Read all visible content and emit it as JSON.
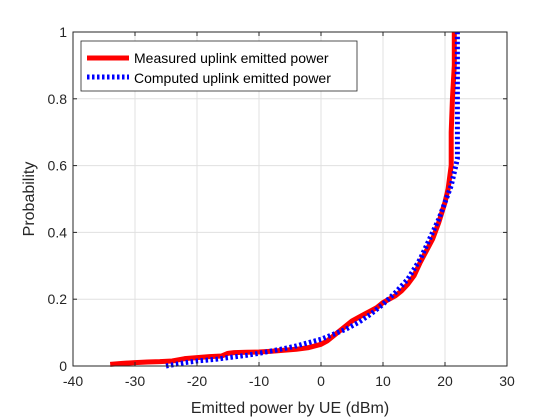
{
  "chart_data": {
    "type": "line",
    "title": "",
    "xlabel": "Emitted power by UE (dBm)",
    "ylabel": "Probability",
    "xlim": [
      -40,
      30
    ],
    "ylim": [
      0,
      1
    ],
    "xticks": [
      -40,
      -30,
      -20,
      -10,
      0,
      10,
      20,
      30
    ],
    "yticks": [
      0,
      0.2,
      0.4,
      0.6,
      0.8,
      1
    ],
    "xtick_labels": [
      "-40",
      "-30",
      "-20",
      "-10",
      "0",
      "10",
      "20",
      "30"
    ],
    "ytick_labels": [
      "0",
      "0.2",
      "0.4",
      "0.6",
      "0.8",
      "1"
    ],
    "grid": true,
    "legend_position": "top-left",
    "series": [
      {
        "name": "Measured uplink emitted power",
        "color": "#ff0000",
        "style": "solid",
        "x": [
          -34,
          -32,
          -30,
          -28,
          -26,
          -24,
          -22,
          -20,
          -18,
          -16,
          -15,
          -14,
          -12,
          -10,
          -8,
          -6,
          -4,
          -2,
          0,
          1,
          2,
          3,
          4,
          5,
          6,
          7,
          8,
          9,
          10,
          11,
          12,
          13,
          14,
          15,
          16,
          17,
          18,
          19,
          20,
          20.5,
          21,
          21,
          21.2,
          21.5,
          21.5
        ],
        "y": [
          0.005,
          0.008,
          0.01,
          0.012,
          0.013,
          0.015,
          0.022,
          0.025,
          0.028,
          0.03,
          0.038,
          0.04,
          0.041,
          0.042,
          0.044,
          0.047,
          0.05,
          0.055,
          0.065,
          0.075,
          0.09,
          0.105,
          0.12,
          0.135,
          0.145,
          0.155,
          0.165,
          0.175,
          0.19,
          0.2,
          0.21,
          0.225,
          0.245,
          0.27,
          0.31,
          0.345,
          0.38,
          0.43,
          0.49,
          0.53,
          0.6,
          0.7,
          0.8,
          0.9,
          1.0
        ]
      },
      {
        "name": "Computed uplink emitted power",
        "color": "#0000ff",
        "style": "dotted",
        "x": [
          -25,
          -22,
          -20,
          -17,
          -15,
          -12,
          -10,
          -8,
          -6,
          -4,
          -2,
          0,
          2,
          4,
          6,
          8,
          10,
          12,
          14,
          15,
          16,
          17,
          18,
          19,
          20,
          21,
          21.5,
          22,
          22,
          22,
          22
        ],
        "y": [
          0.0,
          0.01,
          0.015,
          0.02,
          0.025,
          0.032,
          0.038,
          0.045,
          0.052,
          0.06,
          0.07,
          0.08,
          0.095,
          0.11,
          0.13,
          0.155,
          0.185,
          0.22,
          0.26,
          0.29,
          0.32,
          0.36,
          0.4,
          0.44,
          0.49,
          0.54,
          0.58,
          0.62,
          0.8,
          0.95,
          1.0
        ]
      }
    ]
  }
}
